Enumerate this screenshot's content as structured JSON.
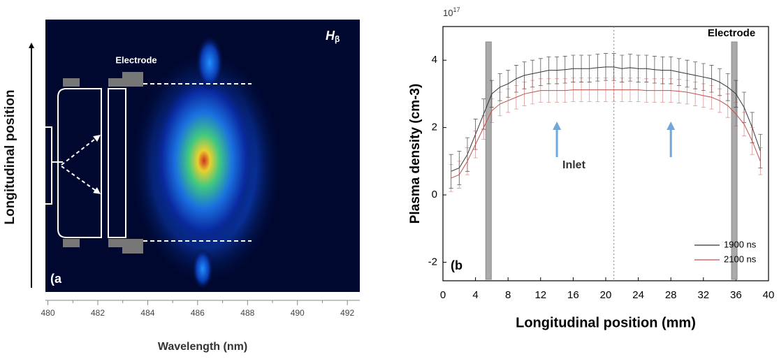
{
  "chart_data": [
    {
      "type": "image",
      "xlabel": "Wavelength (nm)",
      "ylabel": "Longitudinal position",
      "xlim": [
        479.9,
        492.5
      ],
      "xticks": [
        480,
        482,
        484,
        486,
        488,
        490,
        492
      ],
      "annotations": {
        "electrode": "Electrode",
        "line": {
          "element": "H",
          "subscript": "β"
        },
        "panel": "(a"
      }
    },
    {
      "type": "line",
      "xlabel": "Longitudinal position (mm)",
      "ylabel": "Plasma density (cm-3)",
      "y_multiplier": {
        "base": "10",
        "exponent": "17"
      },
      "xlim": [
        0,
        40
      ],
      "xticks": [
        0,
        4,
        8,
        12,
        16,
        20,
        24,
        28,
        32,
        36,
        40
      ],
      "ylim": [
        -2.55,
        5
      ],
      "yticks": [
        -2,
        0,
        2,
        4
      ],
      "x": [
        1,
        2,
        3,
        4,
        5,
        6,
        7,
        8,
        9,
        10,
        11,
        12,
        13,
        14,
        15,
        16,
        17,
        18,
        19,
        20,
        21,
        22,
        23,
        24,
        25,
        26,
        27,
        28,
        29,
        30,
        31,
        32,
        33,
        34,
        35,
        36,
        37,
        38,
        39
      ],
      "series": [
        {
          "name": "1900 ns",
          "color": "#333333",
          "values": [
            0.7,
            0.8,
            1.2,
            1.8,
            2.4,
            3.0,
            3.2,
            3.3,
            3.45,
            3.55,
            3.6,
            3.65,
            3.7,
            3.7,
            3.72,
            3.75,
            3.75,
            3.75,
            3.78,
            3.8,
            3.8,
            3.75,
            3.78,
            3.75,
            3.75,
            3.72,
            3.7,
            3.7,
            3.65,
            3.6,
            3.55,
            3.5,
            3.45,
            3.35,
            3.2,
            3.0,
            2.6,
            2.0,
            1.3
          ],
          "errors": [
            0.5,
            0.5,
            0.5,
            0.45,
            0.45,
            0.4,
            0.4,
            0.4,
            0.4,
            0.4,
            0.4,
            0.4,
            0.4,
            0.4,
            0.4,
            0.4,
            0.4,
            0.4,
            0.4,
            0.4,
            0.4,
            0.4,
            0.4,
            0.4,
            0.4,
            0.4,
            0.4,
            0.4,
            0.4,
            0.4,
            0.4,
            0.4,
            0.4,
            0.4,
            0.4,
            0.4,
            0.45,
            0.45,
            0.5
          ]
        },
        {
          "name": "2100 ns",
          "color": "#c0504d",
          "values": [
            0.5,
            0.6,
            1.0,
            1.5,
            2.0,
            2.5,
            2.7,
            2.8,
            2.9,
            3.0,
            3.05,
            3.1,
            3.1,
            3.1,
            3.1,
            3.12,
            3.12,
            3.12,
            3.12,
            3.12,
            3.12,
            3.12,
            3.12,
            3.12,
            3.1,
            3.1,
            3.1,
            3.1,
            3.08,
            3.05,
            3.0,
            2.95,
            2.9,
            2.8,
            2.65,
            2.4,
            2.1,
            1.6,
            1.0
          ],
          "errors": [
            0.4,
            0.4,
            0.4,
            0.4,
            0.35,
            0.35,
            0.35,
            0.35,
            0.35,
            0.35,
            0.35,
            0.35,
            0.35,
            0.35,
            0.35,
            0.35,
            0.35,
            0.35,
            0.35,
            0.35,
            0.35,
            0.35,
            0.35,
            0.35,
            0.35,
            0.35,
            0.35,
            0.35,
            0.35,
            0.35,
            0.35,
            0.35,
            0.35,
            0.35,
            0.35,
            0.35,
            0.35,
            0.4,
            0.4
          ]
        }
      ],
      "legend": "lower right",
      "electrode_positions": [
        5.6,
        35.8
      ],
      "inlet_positions": [
        14,
        28
      ],
      "center_line": 21,
      "annotations": {
        "inlet": "Inlet",
        "electrode": "Electrode",
        "panel": "(b"
      }
    }
  ]
}
